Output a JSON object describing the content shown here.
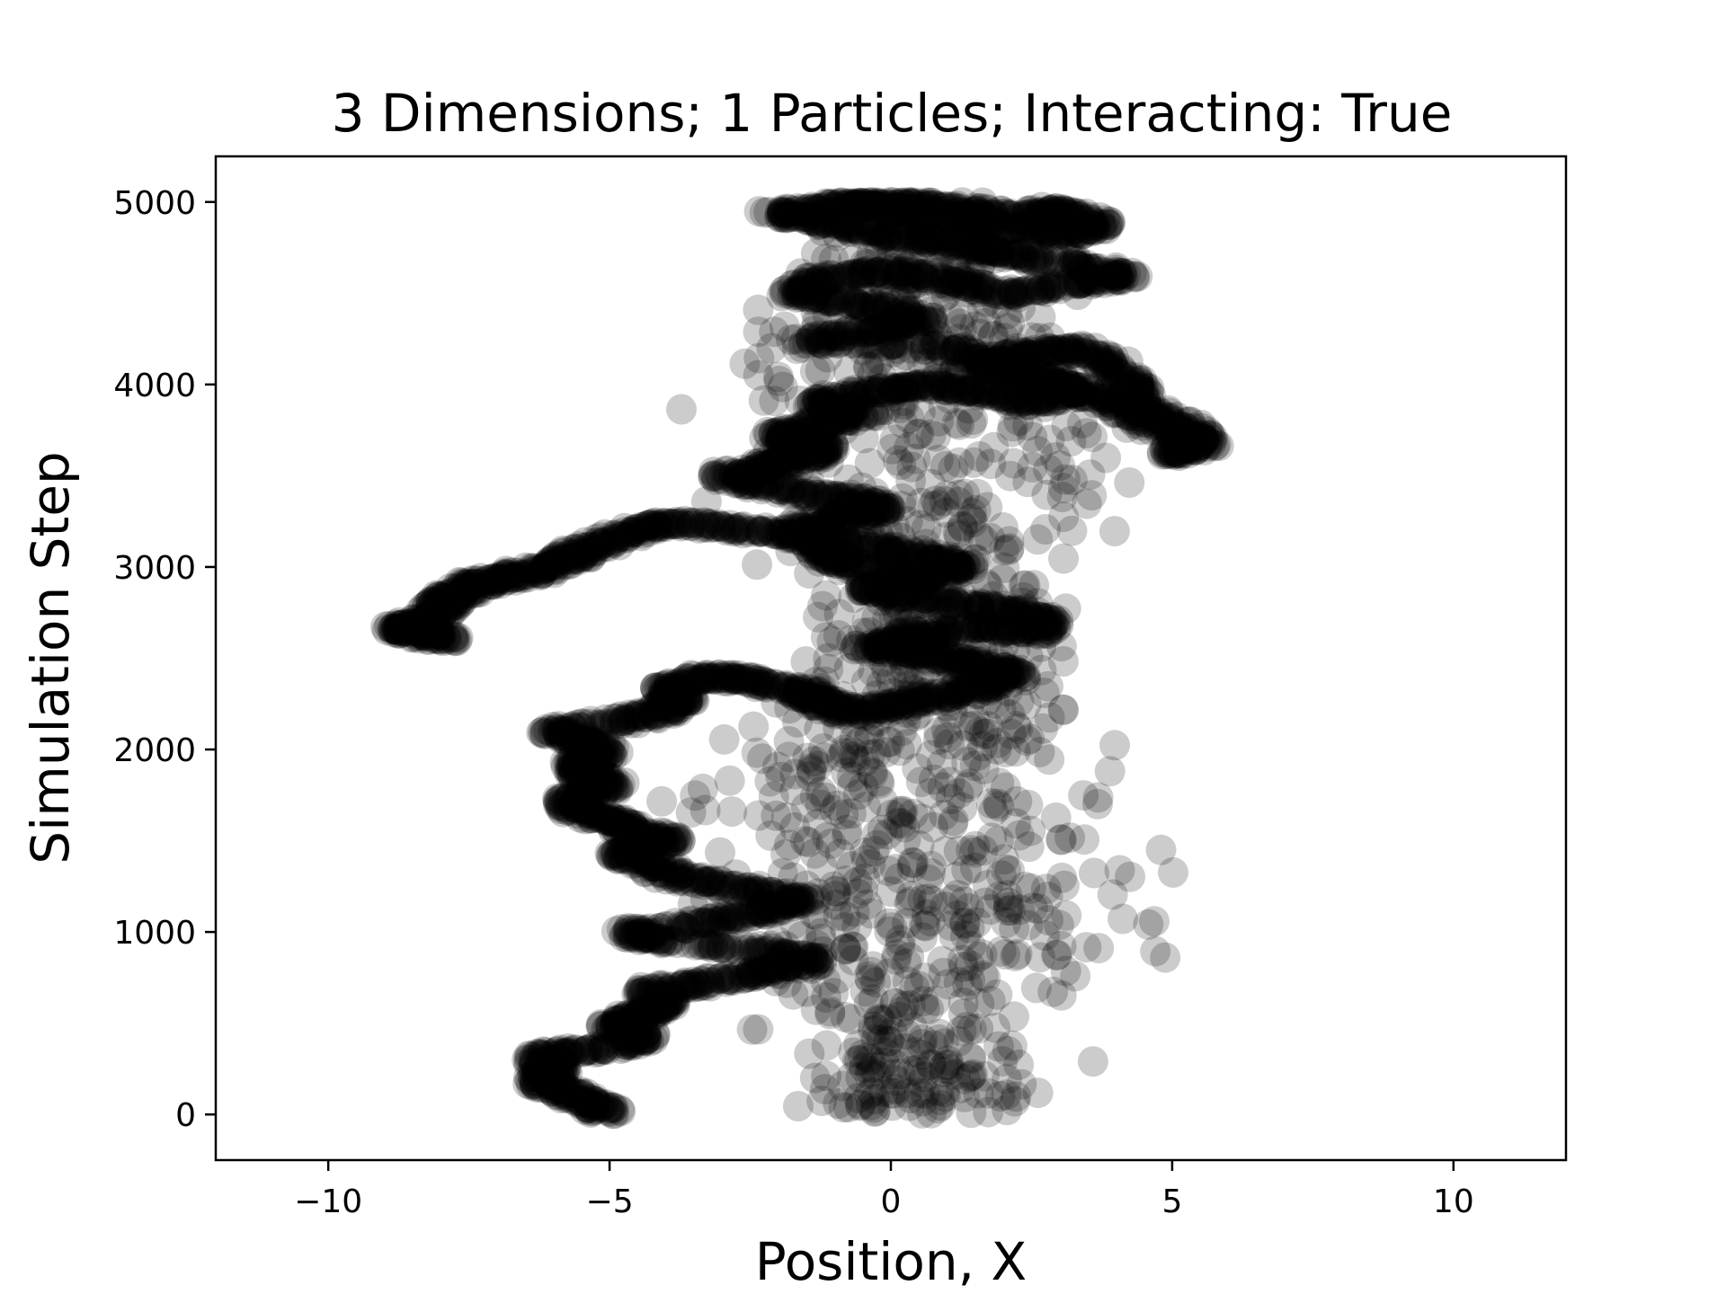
{
  "chart_data": {
    "type": "scatter",
    "title": "3 Dimensions; 1 Particles; Interacting: True",
    "xlabel": "Position, X",
    "ylabel": "Simulation Step",
    "xlim": [
      -12,
      12
    ],
    "ylim": [
      -250,
      5250
    ],
    "xticks": [
      -10,
      -5,
      0,
      5,
      10
    ],
    "xtick_labels": [
      "−10",
      "−5",
      "0",
      "5",
      "10"
    ],
    "yticks": [
      0,
      1000,
      2000,
      3000,
      4000,
      5000
    ],
    "ytick_labels": [
      "0",
      "1000",
      "2000",
      "3000",
      "4000",
      "5000"
    ],
    "grid": false,
    "marker_color": "#000000",
    "marker_alpha": 0.2,
    "series": [
      {
        "points_count": 5000,
        "trajectory_x_at_step": [
          [
            0,
            -5.0
          ],
          [
            60,
            -5.3
          ],
          [
            120,
            -5.8
          ],
          [
            180,
            -6.2
          ],
          [
            250,
            -6.0
          ],
          [
            320,
            -6.3
          ],
          [
            360,
            -5.2
          ],
          [
            420,
            -4.3
          ],
          [
            480,
            -4.9
          ],
          [
            540,
            -4.5
          ],
          [
            600,
            -4.0
          ],
          [
            680,
            -4.3
          ],
          [
            720,
            -3.2
          ],
          [
            780,
            -2.2
          ],
          [
            840,
            -1.4
          ],
          [
            900,
            -2.3
          ],
          [
            960,
            -4.2
          ],
          [
            1000,
            -4.6
          ],
          [
            1060,
            -3.1
          ],
          [
            1120,
            -2.2
          ],
          [
            1180,
            -1.6
          ],
          [
            1240,
            -2.7
          ],
          [
            1300,
            -3.8
          ],
          [
            1380,
            -4.4
          ],
          [
            1440,
            -4.8
          ],
          [
            1500,
            -3.9
          ],
          [
            1560,
            -4.6
          ],
          [
            1620,
            -5.1
          ],
          [
            1680,
            -5.7
          ],
          [
            1740,
            -5.6
          ],
          [
            1800,
            -5.0
          ],
          [
            1860,
            -5.4
          ],
          [
            1920,
            -5.6
          ],
          [
            1980,
            -5.1
          ],
          [
            2040,
            -5.3
          ],
          [
            2100,
            -6.1
          ],
          [
            2160,
            -4.7
          ],
          [
            2220,
            -4.0
          ],
          [
            2280,
            -3.7
          ],
          [
            2340,
            -4.0
          ],
          [
            2400,
            -3.2
          ],
          [
            2380,
            -2.5
          ],
          [
            2320,
            -1.6
          ],
          [
            2260,
            -1.2
          ],
          [
            2200,
            -0.8
          ],
          [
            2260,
            0.3
          ],
          [
            2320,
            1.3
          ],
          [
            2400,
            2.3
          ],
          [
            2460,
            1.7
          ],
          [
            2520,
            0.6
          ],
          [
            2560,
            -0.4
          ],
          [
            2620,
            0.5
          ],
          [
            2680,
            1.6
          ],
          [
            2640,
            2.6
          ],
          [
            2720,
            2.8
          ],
          [
            2780,
            1.7
          ],
          [
            2820,
            0.6
          ],
          [
            2880,
            -0.5
          ],
          [
            2940,
            0.4
          ],
          [
            3000,
            1.3
          ],
          [
            3060,
            0.7
          ],
          [
            3120,
            -0.6
          ],
          [
            3180,
            -1.8
          ],
          [
            3220,
            -3.0
          ],
          [
            3240,
            -4.1
          ],
          [
            3180,
            -4.7
          ],
          [
            3100,
            -5.4
          ],
          [
            3040,
            -5.8
          ],
          [
            2980,
            -6.3
          ],
          [
            2940,
            -6.9
          ],
          [
            2900,
            -7.4
          ],
          [
            2840,
            -7.8
          ],
          [
            2780,
            -8.0
          ],
          [
            2700,
            -8.3
          ],
          [
            2660,
            -8.8
          ],
          [
            2600,
            -7.9
          ],
          [
            2660,
            -8.5
          ]
        ],
        "trajectory_x_at_step_upper": [
          [
            2960,
            0.2
          ],
          [
            3020,
            -0.9
          ],
          [
            3100,
            -1.3
          ],
          [
            3200,
            -1.7
          ],
          [
            3260,
            -1.0
          ],
          [
            3320,
            -0.2
          ],
          [
            3380,
            -1.0
          ],
          [
            3440,
            -2.2
          ],
          [
            3500,
            -3.0
          ],
          [
            3560,
            -2.2
          ],
          [
            3600,
            -1.5
          ],
          [
            3660,
            -1.2
          ],
          [
            3720,
            -2.1
          ],
          [
            3780,
            -1.2
          ],
          [
            3840,
            -0.5
          ],
          [
            3900,
            -1.4
          ],
          [
            3960,
            -0.3
          ],
          [
            4000,
            0.6
          ],
          [
            3960,
            1.6
          ],
          [
            3900,
            2.6
          ],
          [
            3960,
            3.3
          ],
          [
            4020,
            2.5
          ],
          [
            4100,
            1.7
          ],
          [
            4160,
            2.3
          ],
          [
            4200,
            3.2
          ],
          [
            4120,
            4.0
          ],
          [
            3980,
            4.3
          ],
          [
            3880,
            4.4
          ],
          [
            3780,
            5.2
          ],
          [
            3680,
            5.6
          ],
          [
            3620,
            5.0
          ],
          [
            3700,
            5.3
          ],
          [
            3780,
            4.6
          ],
          [
            3900,
            4.0
          ],
          [
            4000,
            3.1
          ],
          [
            4100,
            2.0
          ],
          [
            4200,
            1.0
          ],
          [
            4240,
            -1.5
          ],
          [
            4300,
            -0.3
          ],
          [
            4360,
            0.6
          ],
          [
            4440,
            -0.6
          ],
          [
            4500,
            -1.7
          ],
          [
            4580,
            -1.2
          ],
          [
            4620,
            0.0
          ],
          [
            4560,
            1.0
          ],
          [
            4500,
            2.2
          ],
          [
            4560,
            3.3
          ],
          [
            4600,
            4.2
          ],
          [
            4660,
            3.2
          ],
          [
            4720,
            2.0
          ],
          [
            4780,
            1.1
          ],
          [
            4820,
            0.0
          ],
          [
            4880,
            -1.0
          ],
          [
            4940,
            -2.1
          ],
          [
            4980,
            -1.0
          ],
          [
            5000,
            0.2
          ],
          [
            4960,
            1.2
          ],
          [
            4920,
            2.3
          ],
          [
            4960,
            3.0
          ],
          [
            4880,
            3.7
          ],
          [
            4820,
            3.2
          ],
          [
            4860,
            2.2
          ],
          [
            4920,
            1.0
          ],
          [
            4960,
            0.0
          ],
          [
            5000,
            -0.8
          ],
          [
            5000,
            0.7
          ]
        ]
      }
    ]
  }
}
